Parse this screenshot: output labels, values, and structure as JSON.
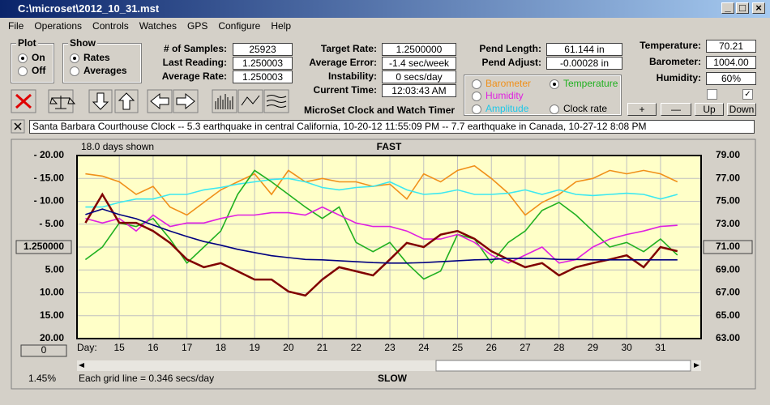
{
  "window": {
    "title": "C:\\microset\\2012_10_31.mst"
  },
  "menu": {
    "items": [
      "File",
      "Operations",
      "Controls",
      "Watches",
      "GPS",
      "Configure",
      "Help"
    ]
  },
  "plot": {
    "label": "Plot",
    "options": [
      "On",
      "Off"
    ]
  },
  "show": {
    "label": "Show",
    "options": [
      "Rates",
      "Averages"
    ]
  },
  "fields_a": [
    {
      "label": "# of Samples:",
      "value": "25923"
    },
    {
      "label": "Last Reading:",
      "value": "1.250003"
    },
    {
      "label": "Average Rate:",
      "value": "1.250003"
    }
  ],
  "fields_b": [
    {
      "label": "Target Rate:",
      "value": "1.2500000"
    },
    {
      "label": "Average Error:",
      "value": "-1.4 sec/week"
    },
    {
      "label": "Instability:",
      "value": "0 secs/day"
    },
    {
      "label": "Current Time:",
      "value": "12:03:43 AM"
    }
  ],
  "fields_c": [
    {
      "label": "Pend Length:",
      "value": "61.144 in"
    },
    {
      "label": "Pend Adjust:",
      "value": "-0.00028 in"
    }
  ],
  "fields_d": [
    {
      "label": "Temperature:",
      "value": "70.21"
    },
    {
      "label": "Barometer:",
      "value": "1004.00"
    },
    {
      "label": "Humidity:",
      "value": "60%"
    }
  ],
  "app_title": "MicroSet Clock and Watch Timer",
  "buttons": [
    "+",
    "—",
    "Up",
    "Down"
  ],
  "info_text": "Santa Barbara Courthouse Clock  -- 5.3 earthquake in central California, 10-20-12 11:55:09 PM  --  7.7 earthquake in Canada, 10-27-12 8:08 PM",
  "chart_data": {
    "type": "line",
    "days_shown": "18.0 days shown",
    "top_label": "FAST",
    "bottom_label": "SLOW",
    "grid_note": "Each grid line = 0.346 secs/day",
    "percent": "1.45%",
    "offset_button": "0",
    "x_label": "Day:",
    "grid": true,
    "x": [
      14,
      14.5,
      15,
      15.5,
      16,
      16.5,
      17,
      17.5,
      18,
      18.5,
      19,
      19.5,
      20,
      20.5,
      21,
      21.5,
      22,
      22.5,
      23,
      23.5,
      24,
      24.5,
      25,
      25.5,
      26,
      26.5,
      27,
      27.5,
      28,
      28.5,
      29,
      29.5,
      30,
      30.5,
      31,
      31.5
    ],
    "xlim": [
      13.75,
      32.2
    ],
    "xticks": [
      15,
      16,
      17,
      18,
      19,
      20,
      21,
      22,
      23,
      24,
      25,
      26,
      27,
      28,
      29,
      30,
      31
    ],
    "ylim": [
      -20,
      20
    ],
    "yticks": [
      {
        "value": 20,
        "label": "- 20.00"
      },
      {
        "value": 15,
        "label": "- 15.00"
      },
      {
        "value": 10,
        "label": "- 10.00"
      },
      {
        "value": 5,
        "label": "- 5.00"
      },
      {
        "value": 0,
        "label": "1.250000"
      },
      {
        "value": -5,
        "label": "5.00"
      },
      {
        "value": -10,
        "label": "10.00"
      },
      {
        "value": -15,
        "label": "15.00"
      },
      {
        "value": -20,
        "label": "20.00"
      }
    ],
    "y2lim": [
      63,
      79
    ],
    "y2ticks": [
      {
        "value": 79,
        "label": "79.00"
      },
      {
        "value": 77,
        "label": "77.00"
      },
      {
        "value": 75,
        "label": "75.00"
      },
      {
        "value": 73,
        "label": "73.00"
      },
      {
        "value": 71,
        "label": "71.00"
      },
      {
        "value": 69,
        "label": "69.00"
      },
      {
        "value": 67,
        "label": "67.00"
      },
      {
        "value": 65,
        "label": "65.00"
      },
      {
        "value": 63,
        "label": "63.00"
      }
    ],
    "series": [
      {
        "name": "Barometer",
        "color": "#f0901a",
        "axis": "y2",
        "values": [
          77.4,
          77.2,
          76.7,
          75.6,
          76.3,
          74.5,
          73.8,
          74.9,
          76,
          76.7,
          77.4,
          75.6,
          77.7,
          76.7,
          77,
          76.7,
          76.7,
          76.3,
          76.5,
          75.2,
          77.4,
          76.7,
          77.7,
          78.1,
          77,
          75.7,
          73.8,
          74.9,
          75.6,
          76.7,
          77,
          77.7,
          77.4,
          77.7,
          77.4,
          76.7
        ]
      },
      {
        "name": "Temperature",
        "color": "#20b020",
        "axis": "y2",
        "values": [
          69.9,
          71,
          73.1,
          72.8,
          73.5,
          71.7,
          69.6,
          71,
          72.4,
          75.6,
          77.7,
          76.7,
          75.6,
          74.5,
          73.5,
          74.5,
          71.4,
          70.6,
          71.4,
          69.6,
          68.2,
          68.9,
          72.1,
          71.7,
          69.6,
          71.4,
          72.4,
          74.2,
          74.9,
          73.8,
          72.4,
          71,
          71.4,
          70.6,
          71.7,
          70.3
        ]
      },
      {
        "name": "Humidity",
        "color": "#e020e0",
        "axis": "y2",
        "values": [
          73.5,
          73.1,
          73.5,
          72.4,
          73.8,
          72.8,
          73.1,
          73.1,
          73.5,
          73.8,
          73.8,
          74,
          74,
          73.8,
          74.5,
          73.8,
          73.1,
          72.8,
          72.8,
          72.4,
          71.7,
          71.7,
          72.1,
          71.4,
          70.3,
          69.6,
          70.3,
          71,
          69.6,
          69.9,
          71,
          71.7,
          72.1,
          72.4,
          72.8,
          72.9
        ]
      },
      {
        "name": "Amplitude",
        "color": "#3ce8f0",
        "axis": "y2",
        "values": [
          74.5,
          74.5,
          74.9,
          75.2,
          75.2,
          75.6,
          75.6,
          76,
          76.2,
          76.5,
          76.7,
          76.9,
          77,
          76.7,
          76.2,
          76,
          76.2,
          76.3,
          76.7,
          76,
          75.6,
          75.7,
          76,
          75.6,
          75.6,
          75.7,
          76,
          75.6,
          76,
          75.6,
          75.5,
          75.6,
          75.7,
          75.6,
          75.2,
          75.6
        ]
      },
      {
        "name": "Clock rate",
        "color": "#800000",
        "values": [
          5.3,
          11.5,
          5.3,
          5.3,
          3.5,
          0.9,
          -2.7,
          -4.4,
          -3.5,
          -5.3,
          -7.1,
          -7.1,
          -9.7,
          -10.6,
          -7.1,
          -4.4,
          -5.3,
          -6.2,
          -2.7,
          0.9,
          0,
          2.7,
          3.5,
          1.8,
          -0.9,
          -2.7,
          -4.4,
          -3.5,
          -6.2,
          -4.4,
          -3.5,
          -2.7,
          -1.8,
          -4.4,
          0,
          -0.9
        ]
      },
      {
        "color": "#000080",
        "values": [
          7.1,
          8.3,
          7.1,
          6.2,
          4.8,
          3.5,
          2.3,
          1.2,
          0.4,
          -0.5,
          -1.2,
          -1.9,
          -2.3,
          -2.7,
          -2.8,
          -3,
          -3.2,
          -3.4,
          -3.5,
          -3.5,
          -3.4,
          -3.2,
          -3,
          -2.8,
          -2.7,
          -2.5,
          -2.5,
          -2.5,
          -2.7,
          -2.7,
          -2.8,
          -2.8,
          -2.8,
          -2.8,
          -2.8,
          -2.8
        ]
      }
    ]
  }
}
